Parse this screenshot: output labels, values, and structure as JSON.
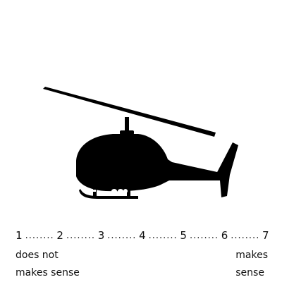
{
  "scale": {
    "points": [
      "1",
      "2",
      "3",
      "4",
      "5",
      "6",
      "7"
    ],
    "separator": "........"
  },
  "anchors": {
    "left_line1": "does not",
    "left_line2": "makes sense",
    "right_line1": "makes",
    "right_line2": "sense"
  },
  "image": {
    "icon": "helicopter-silhouette",
    "color": "#000000"
  }
}
